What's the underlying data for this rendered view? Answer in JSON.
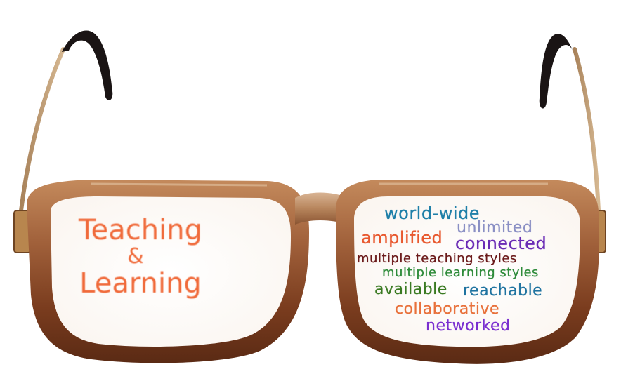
{
  "left_lens": {
    "line1": "Teaching",
    "line2": "&",
    "line3": "Learning",
    "color": "#f06a3a"
  },
  "right_lens": {
    "words": [
      {
        "id": "world-wide",
        "text": "world-wide",
        "color": "#1e7fa8"
      },
      {
        "id": "unlimited",
        "text": "unlimited",
        "color": "#8a8fc4"
      },
      {
        "id": "amplified",
        "text": "amplified",
        "color": "#e8582e"
      },
      {
        "id": "connected",
        "text": "connected",
        "color": "#6a2bb5"
      },
      {
        "id": "multiple-teaching-styles",
        "text": "multiple teaching styles",
        "color": "#6b1a1a"
      },
      {
        "id": "multiple-learning-styles",
        "text": "multiple learning styles",
        "color": "#2e8b3a"
      },
      {
        "id": "available",
        "text": "available",
        "color": "#3a7a22"
      },
      {
        "id": "reachable",
        "text": "reachable",
        "color": "#1f73a0"
      },
      {
        "id": "collaborative",
        "text": "collaborative",
        "color": "#e8703a"
      },
      {
        "id": "networked",
        "text": "networked",
        "color": "#7a2fd0"
      }
    ]
  },
  "colors": {
    "frame_dark": "#5a2a14",
    "frame_mid": "#9a5a34",
    "frame_light": "#c99a72",
    "temple_tip": "#1a1414",
    "hinge": "#b8864e"
  }
}
